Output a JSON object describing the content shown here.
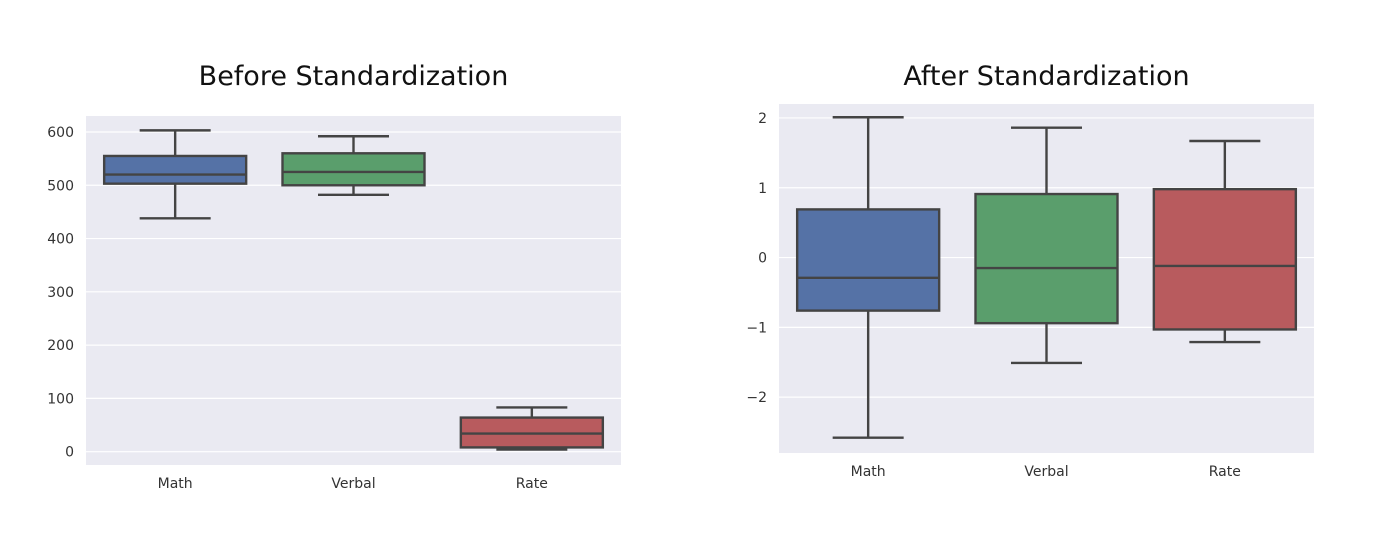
{
  "chart_data": [
    {
      "type": "box",
      "title": "Before Standardization",
      "xlabel": "",
      "ylabel": "",
      "categories": [
        "Math",
        "Verbal",
        "Rate"
      ],
      "ylim": [
        -25,
        630
      ],
      "yticks": [
        0,
        100,
        200,
        300,
        400,
        500,
        600
      ],
      "ytick_labels": [
        "0",
        "100",
        "200",
        "300",
        "400",
        "500",
        "600"
      ],
      "grid": true,
      "legend": "none",
      "boxes": [
        {
          "category": "Math",
          "whisker_low": 438,
          "q1": 503,
          "median": 520,
          "q3": 555,
          "whisker_high": 603,
          "color": "#5572a6"
        },
        {
          "category": "Verbal",
          "whisker_low": 482,
          "q1": 500,
          "median": 525,
          "q3": 560,
          "whisker_high": 592,
          "color": "#5a9e6c"
        },
        {
          "category": "Rate",
          "whisker_low": 4,
          "q1": 8,
          "median": 34,
          "q3": 64,
          "whisker_high": 83,
          "color": "#b85b5e"
        }
      ]
    },
    {
      "type": "box",
      "title": "After Standardization",
      "xlabel": "",
      "ylabel": "",
      "categories": [
        "Math",
        "Verbal",
        "Rate"
      ],
      "ylim": [
        -2.8,
        2.2
      ],
      "yticks": [
        -2,
        -1,
        0,
        1,
        2
      ],
      "ytick_labels": [
        "−2",
        "−1",
        "0",
        "1",
        "2"
      ],
      "grid": true,
      "legend": "none",
      "boxes": [
        {
          "category": "Math",
          "whisker_low": -2.58,
          "q1": -0.76,
          "median": -0.29,
          "q3": 0.69,
          "whisker_high": 2.01,
          "color": "#5572a6"
        },
        {
          "category": "Verbal",
          "whisker_low": -1.51,
          "q1": -0.94,
          "median": -0.15,
          "q3": 0.91,
          "whisker_high": 1.86,
          "color": "#5a9e6c"
        },
        {
          "category": "Rate",
          "whisker_low": -1.21,
          "q1": -1.03,
          "median": -0.12,
          "q3": 0.98,
          "whisker_high": 1.67,
          "color": "#b85b5e"
        }
      ]
    }
  ],
  "style": {
    "plot_background": "#eaeaf2",
    "grid_color": "#ffffff",
    "line_color": "#444444"
  }
}
